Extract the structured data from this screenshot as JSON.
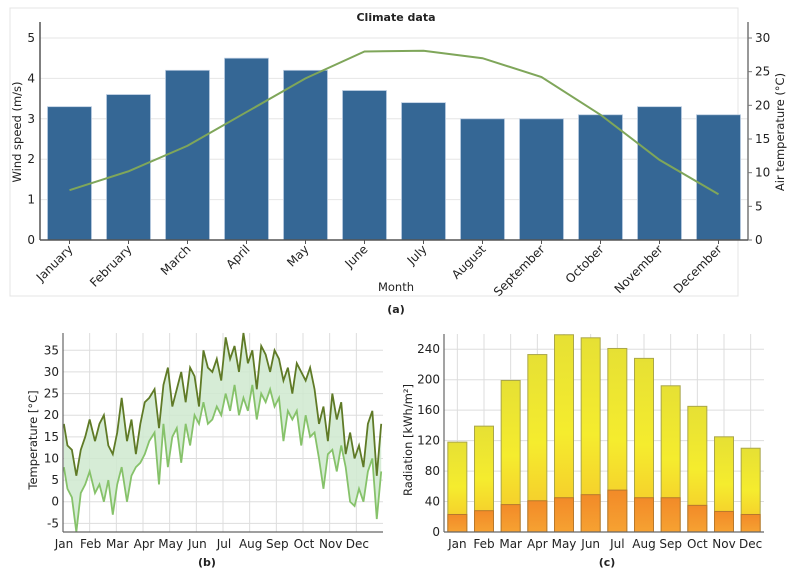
{
  "chart_data": [
    {
      "id": "a",
      "type": "bar+line",
      "title": "Climate data",
      "caption": "(a)",
      "xlabel": "Month",
      "ylabel": "Wind speed (m/s)",
      "ylabel_right": "Air temperature (°C)",
      "categories": [
        "January",
        "February",
        "March",
        "April",
        "May",
        "June",
        "July",
        "August",
        "September",
        "October",
        "November",
        "December"
      ],
      "ylim": [
        0,
        5.4
      ],
      "yticks": [
        0,
        1,
        2,
        3,
        4,
        5
      ],
      "ylim_right": [
        0,
        32.4
      ],
      "yticks_right": [
        0,
        5,
        10,
        15,
        20,
        25,
        30
      ],
      "grid": true,
      "series": [
        {
          "type": "bar",
          "axis": "left",
          "color": "#356795",
          "values": [
            3.3,
            3.6,
            4.2,
            4.5,
            4.2,
            3.7,
            3.4,
            3.0,
            3.0,
            3.1,
            3.3,
            3.1
          ]
        },
        {
          "type": "line",
          "axis": "right",
          "color": "#7fa65a",
          "values": [
            7.4,
            10.2,
            14.0,
            19.0,
            24.0,
            28.0,
            28.1,
            27.0,
            24.2,
            18.6,
            11.9,
            6.8
          ]
        }
      ]
    },
    {
      "id": "b",
      "type": "area-range",
      "caption": "(b)",
      "ylabel": "Temperature [°C]",
      "xticks": [
        "Jan",
        "Feb",
        "Mar",
        "Apr",
        "May",
        "Jun",
        "Jul",
        "Aug",
        "Sep",
        "Oct",
        "Nov",
        "Dec"
      ],
      "yticks": [
        -5,
        0,
        5,
        10,
        15,
        20,
        25,
        30,
        35
      ],
      "ylim": [
        -7,
        39
      ],
      "xlim_days": [
        0,
        360
      ],
      "grid": true,
      "colors": {
        "max": "#5f7a26",
        "min": "#86c26a",
        "fill": "#cfe9cf"
      },
      "day": [
        1,
        5,
        10,
        15,
        20,
        25,
        30,
        36,
        41,
        46,
        51,
        56,
        61,
        66,
        72,
        77,
        82,
        87,
        92,
        97,
        103,
        108,
        113,
        118,
        123,
        128,
        133,
        138,
        143,
        148,
        153,
        158,
        163,
        168,
        173,
        178,
        183,
        188,
        193,
        198,
        203,
        208,
        213,
        218,
        223,
        228,
        233,
        238,
        243,
        248,
        253,
        258,
        263,
        268,
        273,
        278,
        283,
        288,
        293,
        298,
        303,
        308,
        313,
        318,
        323,
        328,
        333,
        338,
        343,
        348,
        353,
        358
      ],
      "max": [
        18,
        13,
        12,
        6,
        12,
        15,
        19,
        14,
        18,
        20,
        13,
        11,
        16,
        24,
        14,
        19,
        11,
        18,
        23,
        24,
        26,
        17,
        27,
        31,
        22,
        26,
        30,
        23,
        31,
        29,
        22,
        35,
        31,
        30,
        33,
        28,
        38,
        33,
        36,
        30,
        39,
        32,
        35,
        26,
        36,
        34,
        30,
        35,
        33,
        28,
        31,
        25,
        32,
        30,
        28,
        31,
        26,
        18,
        22,
        14,
        25,
        19,
        23,
        11,
        16,
        10,
        13,
        8,
        18,
        21,
        6,
        18
      ],
      "min": [
        8,
        3,
        1,
        -7,
        2,
        4,
        7,
        2,
        4,
        0,
        5,
        -3,
        4,
        8,
        0,
        6,
        8,
        9,
        11,
        14,
        16,
        4,
        18,
        8,
        15,
        17,
        9,
        18,
        13,
        20,
        18,
        23,
        18,
        19,
        22,
        20,
        25,
        21,
        27,
        20,
        24,
        21,
        27,
        19,
        25,
        23,
        26,
        22,
        24,
        14,
        21,
        19,
        21,
        13,
        20,
        15,
        16,
        10,
        3,
        11,
        12,
        7,
        13,
        8,
        0,
        -1,
        3,
        0,
        7,
        10,
        -4,
        7
      ]
    },
    {
      "id": "c",
      "type": "stacked-bar",
      "caption": "(c)",
      "ylabel": "Radiation [kWh/m²]",
      "categories": [
        "Jan",
        "Feb",
        "Mar",
        "Apr",
        "May",
        "Jun",
        "Jul",
        "Aug",
        "Sep",
        "Oct",
        "Nov",
        "Dec"
      ],
      "ylim": [
        0,
        260
      ],
      "yticks": [
        0,
        40,
        80,
        120,
        160,
        200,
        240
      ],
      "grid": true,
      "colors": {
        "total": "#f3e52a",
        "diffuse": "#f59a2e"
      },
      "total": [
        118,
        139,
        199,
        233,
        259,
        255,
        241,
        228,
        192,
        165,
        125,
        110
      ],
      "diffuse": [
        23,
        28,
        36,
        41,
        45,
        49,
        55,
        45,
        45,
        35,
        27,
        23
      ]
    }
  ]
}
